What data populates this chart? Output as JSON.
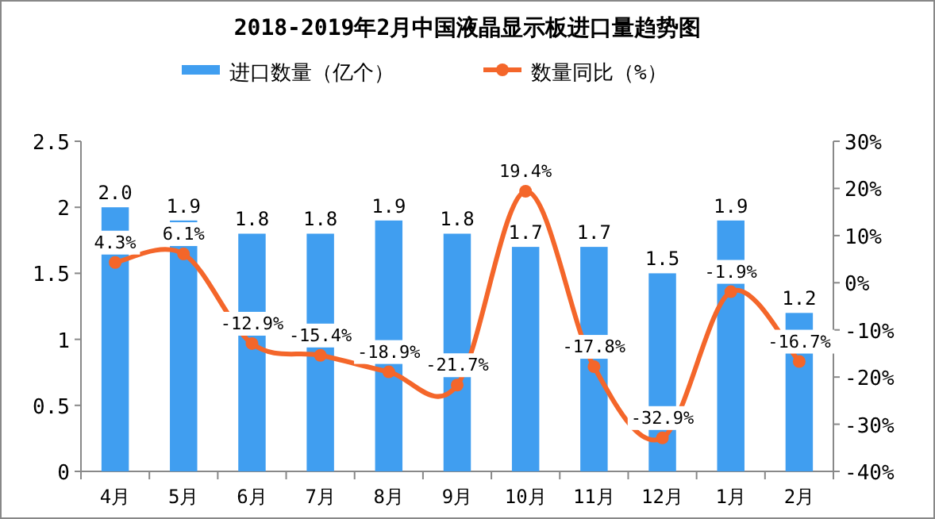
{
  "chart_data": {
    "type": "bar",
    "title": "2018-2019年2月中国液晶显示板进口量趋势图",
    "categories": [
      "4月",
      "5月",
      "6月",
      "7月",
      "8月",
      "9月",
      "10月",
      "11月",
      "12月",
      "1月",
      "2月"
    ],
    "series": [
      {
        "name": "进口数量（亿个）",
        "color": "#409ef0",
        "values": [
          2.0,
          1.9,
          1.8,
          1.8,
          1.9,
          1.8,
          1.7,
          1.7,
          1.5,
          1.9,
          1.2
        ],
        "value_labels": [
          "2.0",
          "1.9",
          "1.8",
          "1.8",
          "1.9",
          "1.8",
          "1.7",
          "1.7",
          "1.5",
          "1.9",
          "1.2"
        ]
      },
      {
        "name": "数量同比（%）",
        "type": "line",
        "axis": "y2",
        "color": "#f4662a",
        "marker": "circle",
        "values": [
          4.3,
          6.1,
          -12.9,
          -15.4,
          -18.9,
          -21.7,
          19.4,
          -17.8,
          -32.9,
          -1.9,
          -16.7
        ],
        "value_labels": [
          "4.3%",
          "6.1%",
          "-12.9%",
          "-15.4%",
          "-18.9%",
          "-21.7%",
          "19.4%",
          "-17.8%",
          "-32.9%",
          "-1.9%",
          "-16.7%"
        ]
      }
    ],
    "ylim": [
      0,
      2.5
    ],
    "yticks": [
      0,
      {
        "value": 0.5,
        "label": "0.5"
      },
      1,
      {
        "value": 1.5,
        "label": "1.5"
      },
      2,
      {
        "value": 2.5,
        "label": "2.5"
      }
    ],
    "y2lim": [
      -40,
      30
    ],
    "y2ticks": [
      {
        "value": -40,
        "label": "-40%"
      },
      {
        "value": -30,
        "label": "-30%"
      },
      {
        "value": -20,
        "label": "-20%"
      },
      {
        "value": -10,
        "label": "-10%"
      },
      {
        "value": 0,
        "label": "0%"
      },
      {
        "value": 10,
        "label": "10%"
      },
      {
        "value": 20,
        "label": "20%"
      },
      {
        "value": 30,
        "label": "30%"
      }
    ],
    "legend": "top",
    "grid": false
  }
}
